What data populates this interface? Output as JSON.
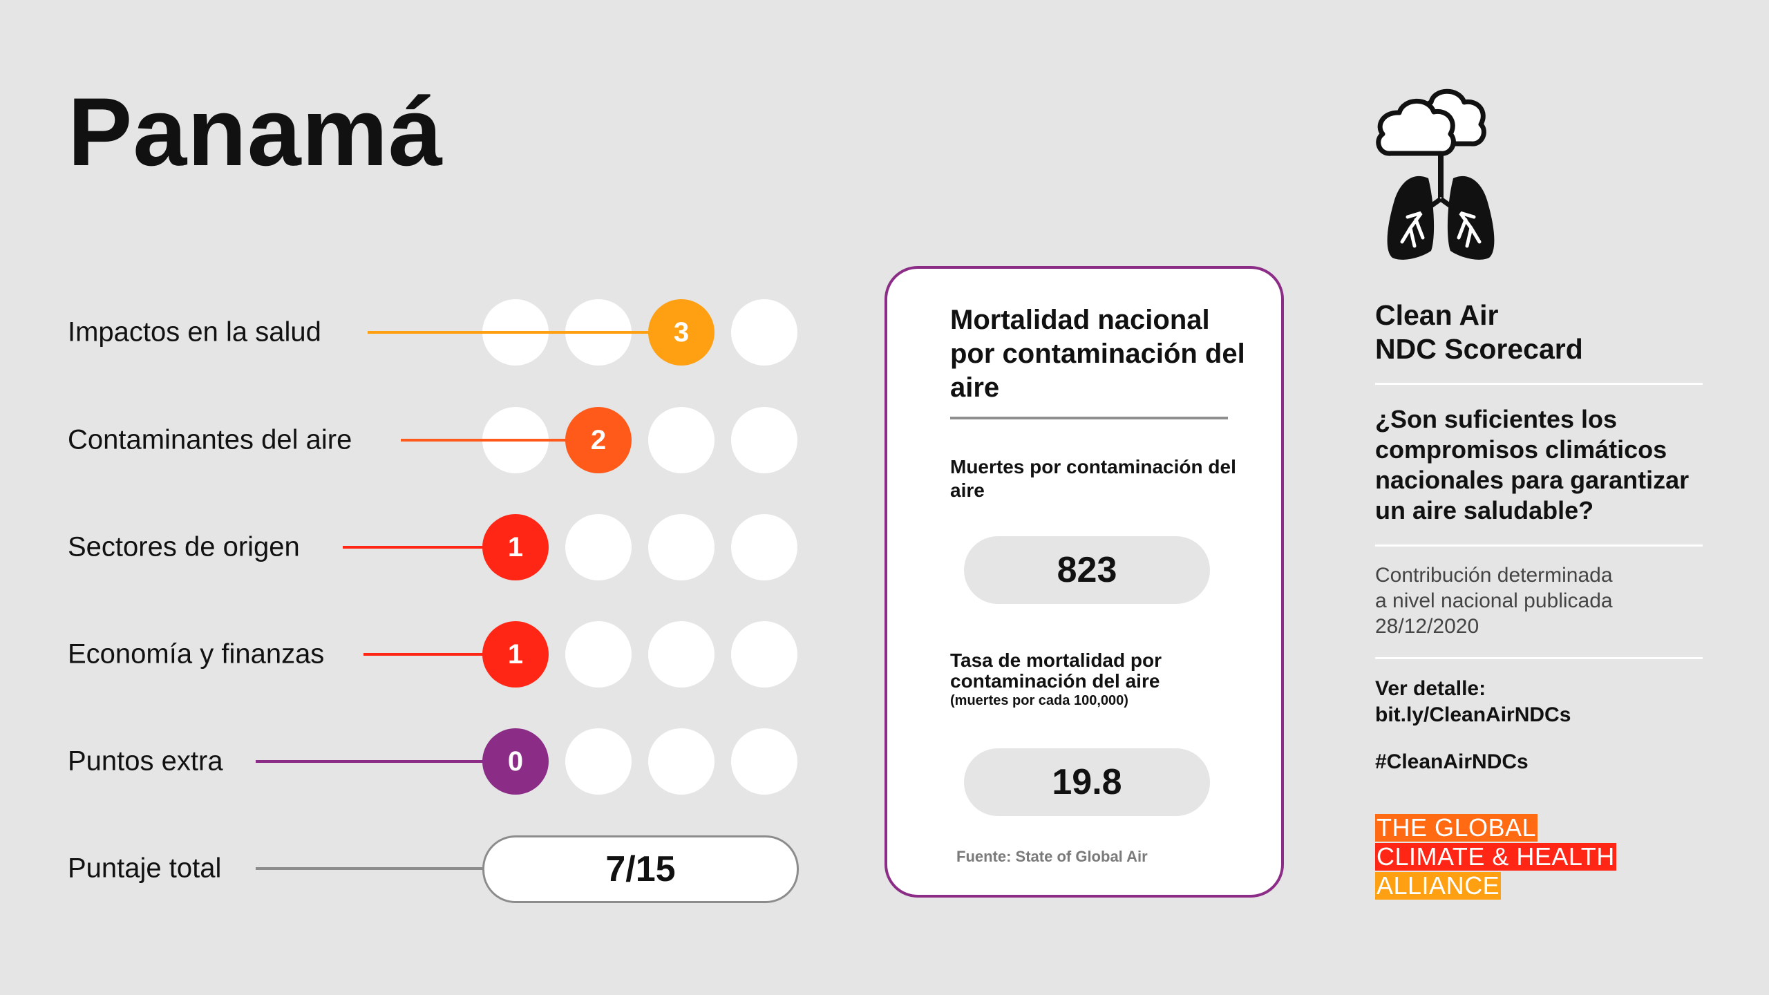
{
  "country": "Panamá",
  "categories": [
    {
      "label": "Impactos en la salud",
      "score": 3,
      "max": 4,
      "color": "#ffa012"
    },
    {
      "label": "Contaminantes del aire",
      "score": 2,
      "max": 4,
      "color": "#ff5a1a"
    },
    {
      "label": "Sectores de origen",
      "score": 1,
      "max": 4,
      "color": "#ff2616"
    },
    {
      "label": "Economía y finanzas",
      "score": 1,
      "max": 4,
      "color": "#ff2616"
    },
    {
      "label": "Puntos extra",
      "score": 0,
      "max": 4,
      "color": "#8b2c87"
    }
  ],
  "total": {
    "label": "Puntaje total",
    "value": "7/15",
    "line_color": "#8c8c8c"
  },
  "card": {
    "title": "Mortalidad nacional por contaminación del aire",
    "deaths_label": "Muertes por contaminación del aire",
    "deaths_value": "823",
    "rate_label": "Tasa de mortalidad por contaminación del aire",
    "rate_note": "(muertes por cada 100,000)",
    "rate_value": "19.8",
    "source": "Fuente: State of Global Air"
  },
  "sidebar": {
    "icon": "cloud-lungs-icon",
    "title_line1": "Clean Air",
    "title_line2": "NDC Scorecard",
    "question": "¿Son suficientes los compromisos climáticos nacionales para garantizar un aire saludable?",
    "contrib_line1": "Contribución determinada",
    "contrib_line2": "a nivel nacional publicada",
    "contrib_date": "28/12/2020",
    "detail_label": "Ver detalle:",
    "detail_link": "bit.ly/CleanAirNDCs",
    "hashtag": "#CleanAirNDCs",
    "org_line1": "THE GLOBAL",
    "org_line2": "CLIMATE & HEALTH",
    "org_line3": "ALLIANCE"
  }
}
